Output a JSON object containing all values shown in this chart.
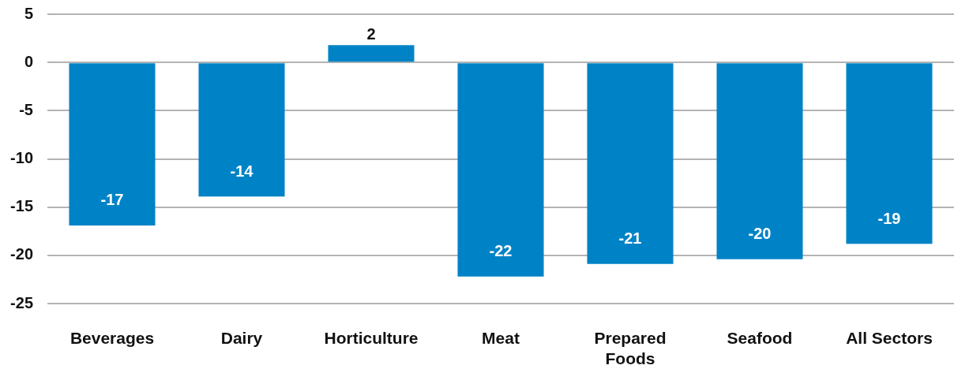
{
  "chart_data": {
    "type": "bar",
    "categories": [
      "Beverages",
      "Dairy",
      "Horticulture",
      "Meat",
      "Prepared Foods",
      "Seafood",
      "All Sectors"
    ],
    "values": [
      -16.9,
      -13.9,
      1.8,
      -22.2,
      -20.9,
      -20.4,
      -18.8
    ],
    "value_labels": [
      "-17",
      "-14",
      "2",
      "-22",
      "-21",
      "-20",
      "-19"
    ],
    "color": "#0083c6",
    "ylim": [
      -25,
      5
    ],
    "yticks": [
      -25,
      -20,
      -15,
      -10,
      -5,
      0,
      5
    ],
    "grid": "y"
  }
}
